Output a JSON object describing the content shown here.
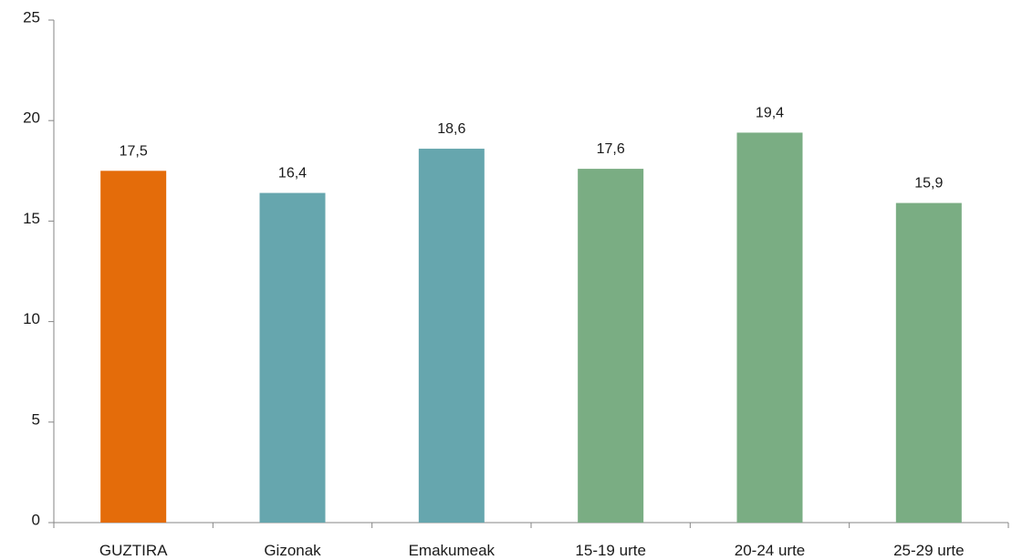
{
  "chart_data": {
    "type": "bar",
    "categories": [
      "GUZTIRA",
      "Gizonak",
      "Emakumeak",
      "15-19 urte",
      "20-24 urte",
      "25-29 urte"
    ],
    "values": [
      17.5,
      16.4,
      18.6,
      17.6,
      19.4,
      15.9
    ],
    "data_labels": [
      "17,5",
      "16,4",
      "18,6",
      "17,6",
      "19,4",
      "15,9"
    ],
    "bar_colors": [
      "#e46c0a",
      "#66a6ae",
      "#66a6ae",
      "#7aad83",
      "#7aad83",
      "#7aad83"
    ],
    "ylim": [
      0,
      25
    ],
    "yticks": [
      0,
      5,
      10,
      15,
      20,
      25
    ],
    "ytick_labels": [
      "0",
      "5",
      "10",
      "15",
      "20",
      "25"
    ],
    "axis_color": "#868686",
    "grid": false,
    "legend": false
  }
}
